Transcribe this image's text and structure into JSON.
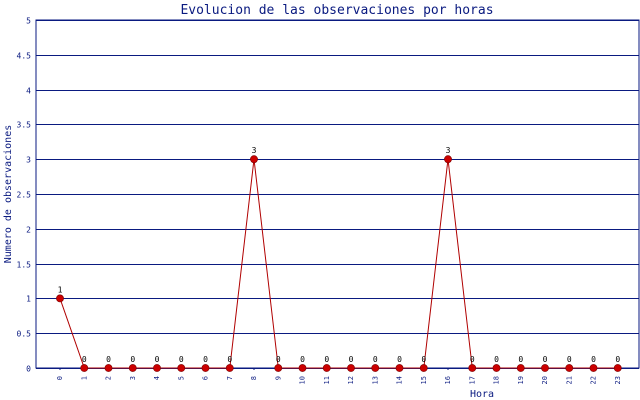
{
  "chart_data": {
    "type": "line",
    "title": "Evolucion de las observaciones por horas",
    "xlabel": "Hora",
    "ylabel": "Numero de observaciones",
    "categories": [
      "0",
      "1",
      "2",
      "3",
      "4",
      "5",
      "6",
      "7",
      "8",
      "9",
      "10",
      "11",
      "12",
      "13",
      "14",
      "15",
      "16",
      "17",
      "18",
      "19",
      "20",
      "21",
      "22",
      "23"
    ],
    "series": [
      {
        "values": [
          1,
          0,
          0,
          0,
          0,
          0,
          0,
          0,
          3,
          0,
          0,
          0,
          0,
          0,
          0,
          0,
          3,
          0,
          0,
          0,
          0,
          0,
          0,
          0
        ]
      }
    ],
    "ylim": [
      0,
      5
    ],
    "yticks": [
      "0",
      "0.5",
      "1",
      "1.5",
      "2",
      "2.5",
      "3",
      "3.5",
      "4",
      "4.5",
      "5"
    ],
    "grid": true,
    "data_labels": true,
    "colors": {
      "grid": "#0a1a80",
      "line": "#b00000",
      "marker": "#cc0000",
      "text": "#0a1a80"
    }
  }
}
